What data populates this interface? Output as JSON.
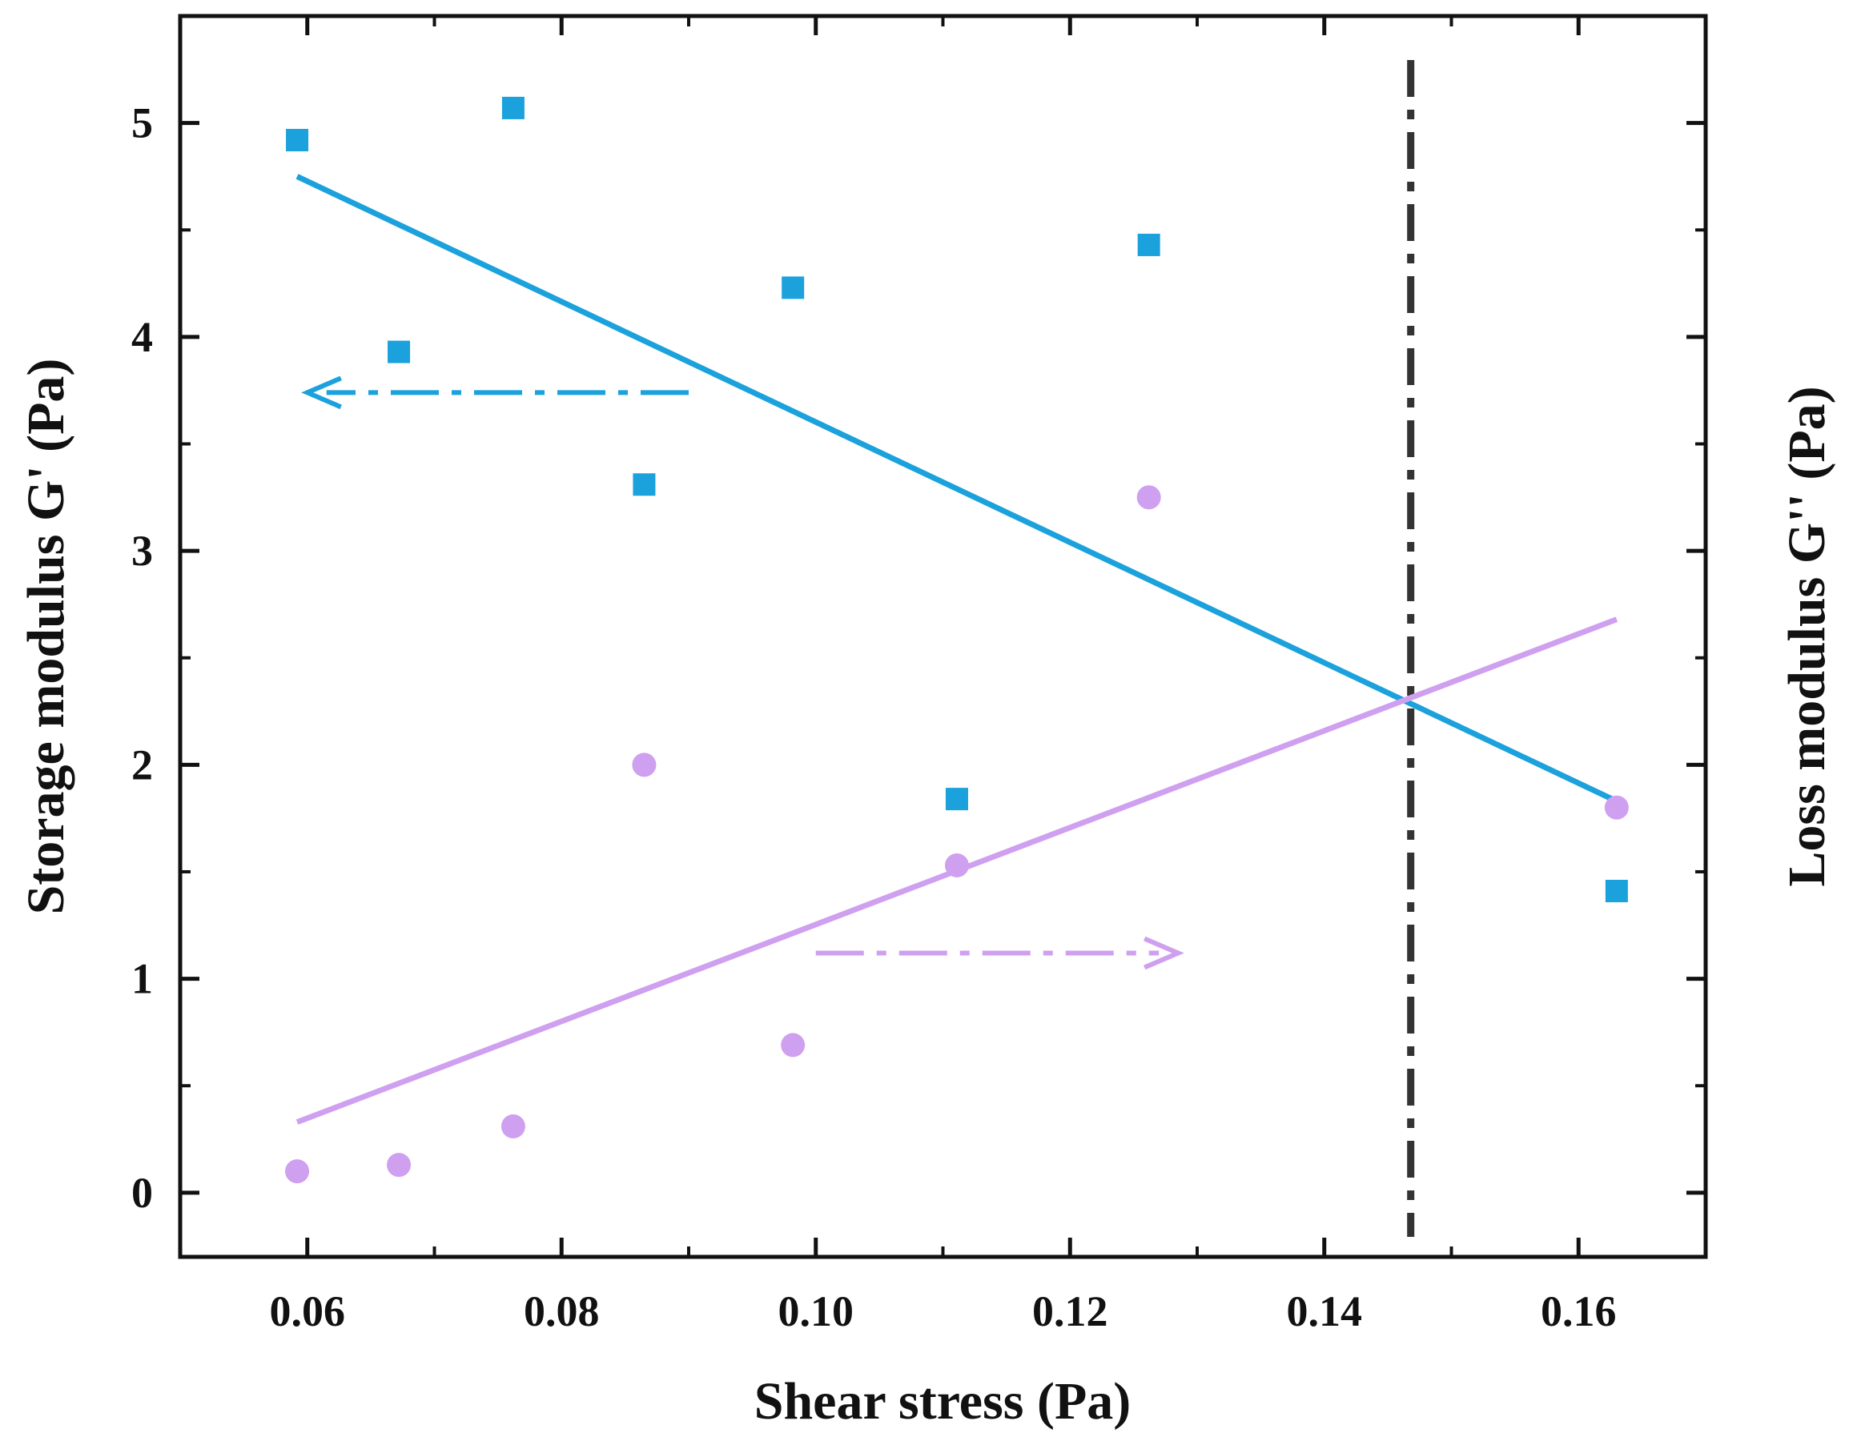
{
  "chart_data": {
    "type": "scatter",
    "title": "",
    "xlabel": "Shear stress  (Pa)",
    "ylabel_left": "Storage modulus G' (Pa)",
    "ylabel_right": "Loss modulus G'' (Pa)",
    "xlim": [
      0.05,
      0.17
    ],
    "ylim": [
      -0.3,
      5.5
    ],
    "x_ticks": [
      0.06,
      0.08,
      0.1,
      0.12,
      0.14,
      0.16
    ],
    "x_tick_labels": [
      "0.06",
      "0.08",
      "0.10",
      "0.12",
      "0.14",
      "0.16"
    ],
    "y_ticks": [
      0,
      1,
      2,
      3,
      4,
      5
    ],
    "y_tick_labels": [
      "0",
      "1",
      "2",
      "3",
      "4",
      "5"
    ],
    "grid": false,
    "series": [
      {
        "name": "G'",
        "marker": "square",
        "color": "#1ba1dc",
        "x": [
          0.0592,
          0.0672,
          0.0762,
          0.0865,
          0.0982,
          0.1111,
          0.1262,
          0.163
        ],
        "y": [
          4.92,
          3.93,
          5.07,
          3.31,
          4.23,
          1.84,
          4.43,
          1.41
        ],
        "fit": {
          "x": [
            0.0592,
            0.163
          ],
          "y": [
            4.75,
            1.83
          ]
        }
      },
      {
        "name": "G''",
        "marker": "circle",
        "color": "#cf9ff0",
        "x": [
          0.0592,
          0.0672,
          0.0762,
          0.0865,
          0.0982,
          0.1111,
          0.1262,
          0.163
        ],
        "y": [
          0.1,
          0.13,
          0.31,
          2.0,
          0.69,
          1.53,
          3.25,
          1.8
        ],
        "fit": {
          "x": [
            0.0592,
            0.163
          ],
          "y": [
            0.33,
            2.68
          ]
        }
      }
    ],
    "annotations": [
      {
        "type": "vline",
        "x": 0.1468,
        "style": "dash-dot",
        "color": "#333333"
      },
      {
        "type": "arrow",
        "direction": "left",
        "series": "G'",
        "x_from": 0.09,
        "x_to": 0.06,
        "y": 3.74,
        "style": "dash-dot",
        "color": "#1ba1dc"
      },
      {
        "type": "arrow",
        "direction": "right",
        "series": "G''",
        "x_from": 0.1,
        "x_to": 0.1285,
        "y": 1.12,
        "style": "dash-dot",
        "color": "#cf9ff0"
      }
    ]
  }
}
